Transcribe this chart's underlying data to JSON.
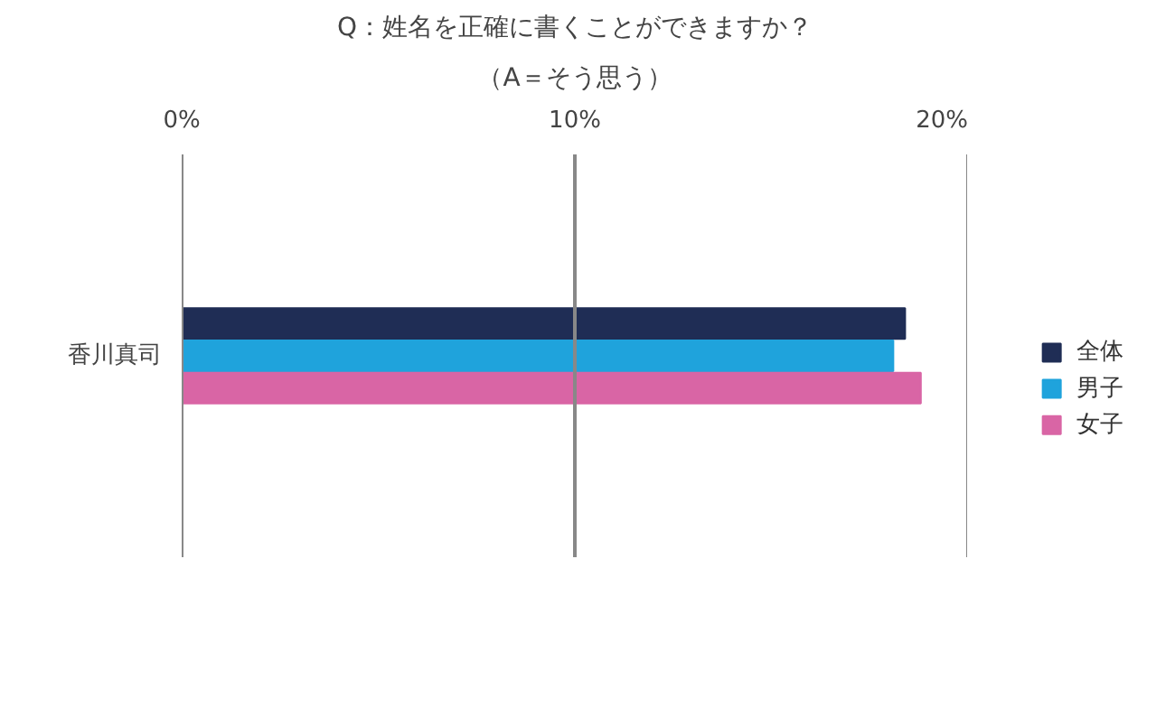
{
  "chart_data": {
    "type": "bar",
    "orientation": "horizontal",
    "title": "Q：姓名を正確に書くことができますか？",
    "subtitle": "（A＝そう思う）",
    "categories": [
      "香川真司"
    ],
    "series": [
      {
        "name": "全体",
        "color": "#1f2d55",
        "values": [
          18.4
        ]
      },
      {
        "name": "男子",
        "color": "#1fa3dc",
        "values": [
          18.1
        ]
      },
      {
        "name": "女子",
        "color": "#d965a5",
        "values": [
          18.8
        ]
      }
    ],
    "xlim": [
      0,
      20
    ],
    "xticks": [
      {
        "value": 0,
        "label": "0%"
      },
      {
        "value": 10,
        "label": "10%"
      },
      {
        "value": 20,
        "label": "20%"
      }
    ],
    "grid": "x",
    "legend": "right"
  }
}
